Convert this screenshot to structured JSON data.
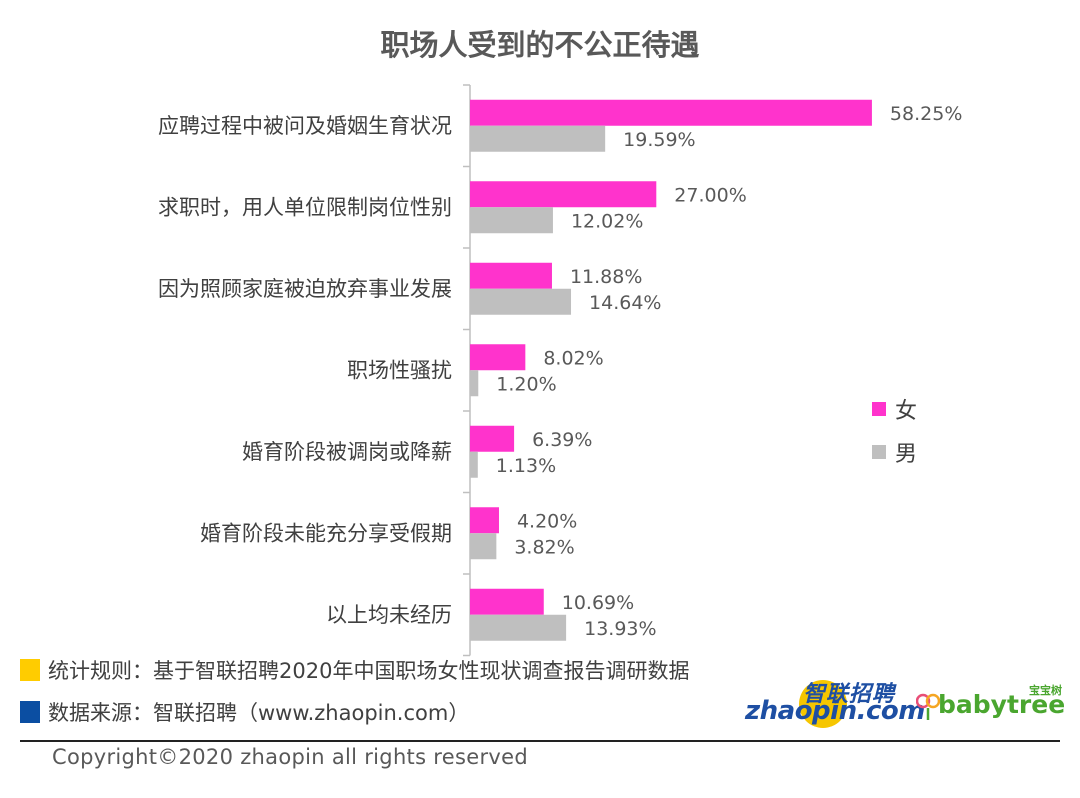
{
  "chart_data": {
    "type": "bar",
    "orientation": "horizontal",
    "title": "职场人受到的不公正待遇",
    "categories": [
      "应聘过程中被问及婚姻生育状况",
      "求职时，用人单位限制岗位性别",
      "因为照顾家庭被迫放弃事业发展",
      "职场性骚扰",
      "婚育阶段被调岗或降薪",
      "婚育阶段未能充分享受假期",
      "以上均未经历"
    ],
    "series": [
      {
        "name": "女",
        "color": "#ff33cc",
        "values": [
          58.25,
          27.0,
          11.88,
          8.02,
          6.39,
          4.2,
          10.69
        ],
        "labels": [
          "58.25%",
          "27.00%",
          "11.88%",
          "8.02%",
          "6.39%",
          "4.20%",
          "10.69%"
        ]
      },
      {
        "name": "男",
        "color": "#bfbfbf",
        "values": [
          19.59,
          12.02,
          14.64,
          1.2,
          1.13,
          3.82,
          13.93
        ],
        "labels": [
          "19.59%",
          "12.02%",
          "14.64%",
          "1.20%",
          "1.13%",
          "3.82%",
          "13.93%"
        ]
      }
    ],
    "xlim": [
      0,
      70
    ],
    "grid": false,
    "legend_position": "right"
  },
  "footnotes": {
    "rule": "统计规则：基于智联招聘2020年中国职场女性现状调查报告调研数据",
    "rule_color": "#ffcc00",
    "source": "数据来源：智联招聘（www.zhaopin.com）",
    "source_color": "#0b4ea2"
  },
  "logos": {
    "zhaopin_cn": "智联招聘",
    "zhaopin_en": "zhaopin.com",
    "babytree_cn": "宝宝树",
    "babytree_en": "babytree"
  },
  "copyright": "Copyright©2020 zhaopin all rights reserved"
}
